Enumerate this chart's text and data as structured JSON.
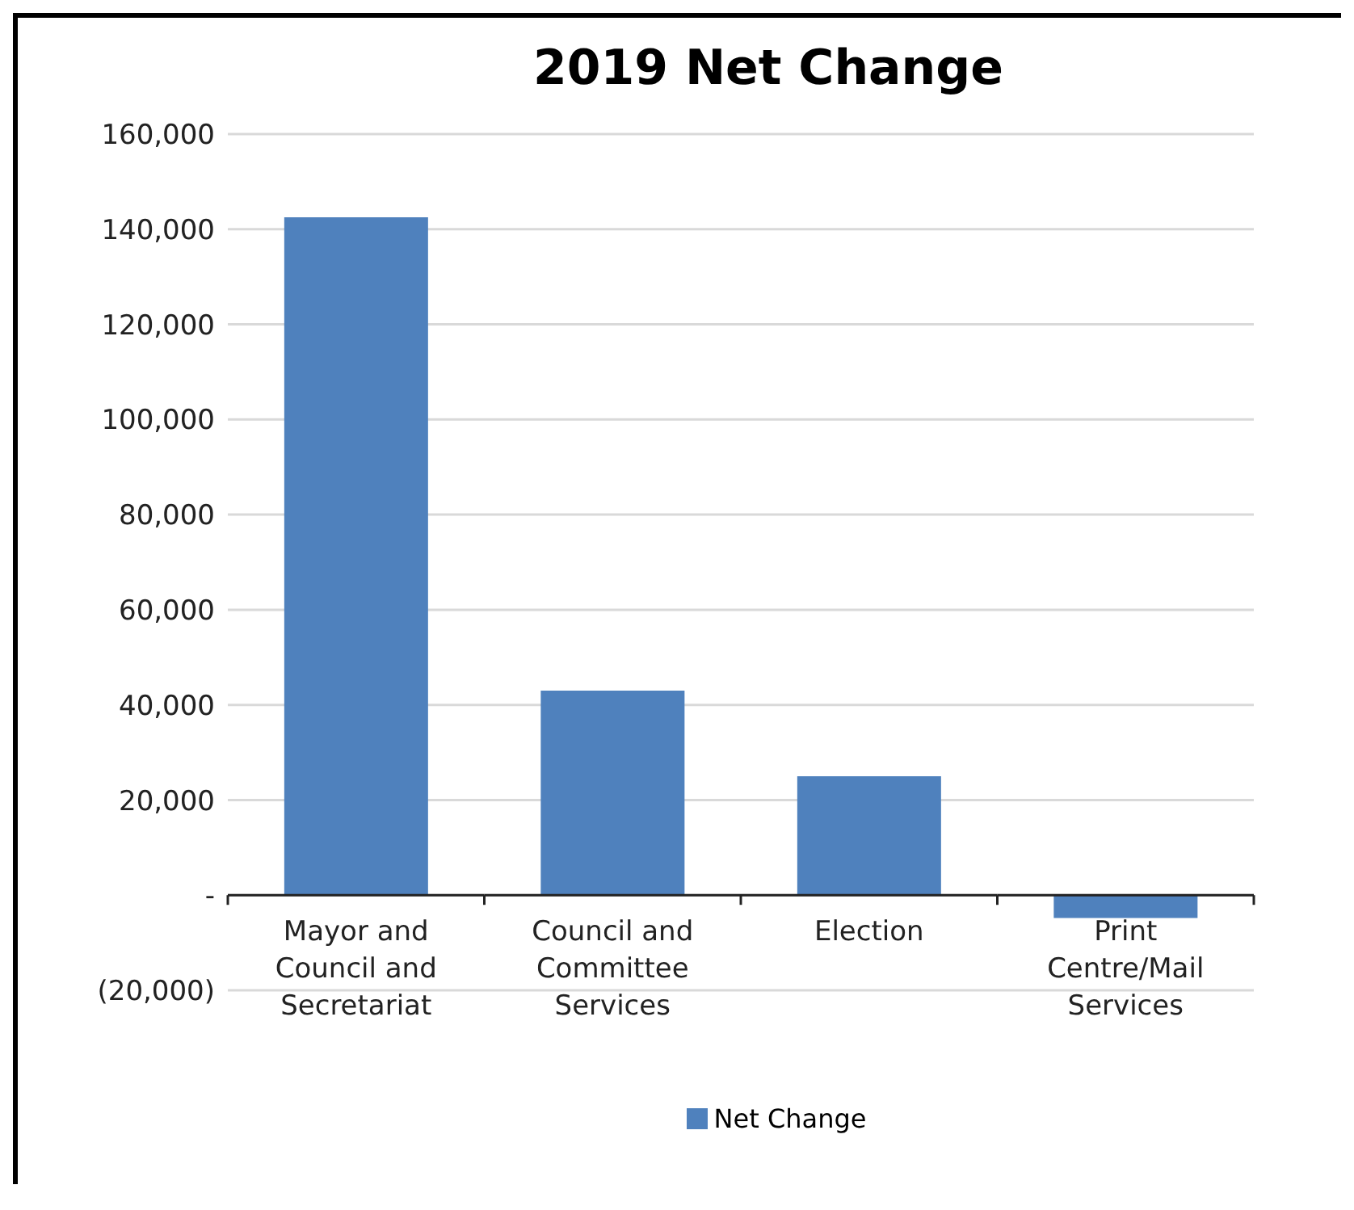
{
  "chart_data": {
    "type": "bar",
    "title": "2019 Net Change",
    "categories": [
      "Mayor and Council and Secretariat",
      "Council and Committee Services",
      "Election",
      "Print Centre/Mail Services"
    ],
    "series": [
      {
        "name": "Net Change",
        "color": "#4f81bd",
        "values": [
          142500,
          43000,
          25000,
          -4800
        ]
      }
    ],
    "ylim": [
      -20000,
      160000
    ],
    "yticks": [
      {
        "value": -20000,
        "label": "(20,000)"
      },
      {
        "value": 0,
        "label": "-"
      },
      {
        "value": 20000,
        "label": "20,000"
      },
      {
        "value": 40000,
        "label": "40,000"
      },
      {
        "value": 60000,
        "label": "60,000"
      },
      {
        "value": 80000,
        "label": "80,000"
      },
      {
        "value": 100000,
        "label": "100,000"
      },
      {
        "value": 120000,
        "label": "120,000"
      },
      {
        "value": 140000,
        "label": "140,000"
      },
      {
        "value": 160000,
        "label": "160,000"
      }
    ],
    "grid": "y",
    "legend": "bottom"
  }
}
